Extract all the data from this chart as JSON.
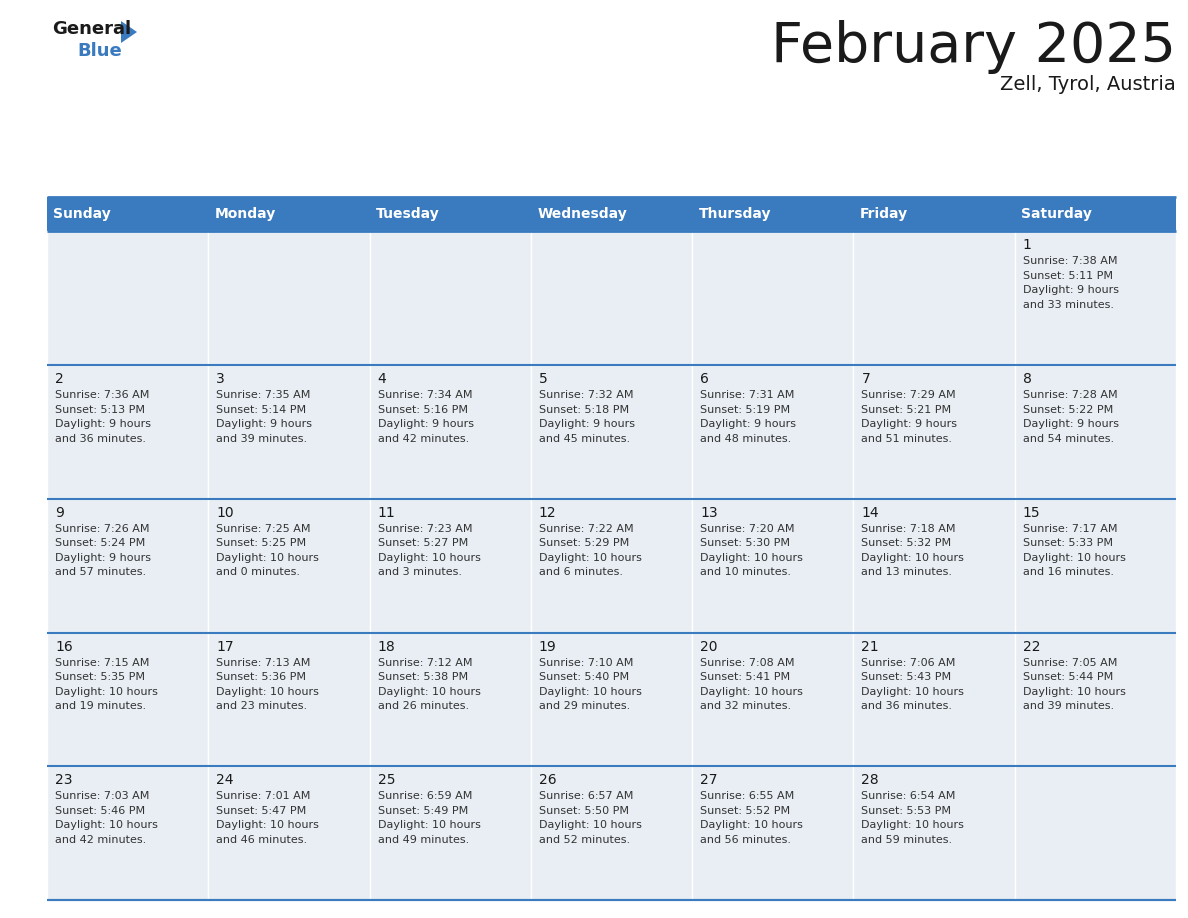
{
  "title": "February 2025",
  "subtitle": "Zell, Tyrol, Austria",
  "header_color": "#3a7abf",
  "header_text_color": "#ffffff",
  "cell_bg_color": "#e8eef4",
  "border_color": "#3a7abf",
  "row_line_color": "#3a7abf",
  "title_color": "#1a1a1a",
  "subtitle_color": "#1a1a1a",
  "day_number_color": "#1a1a1a",
  "cell_text_color": "#333333",
  "days_of_week": [
    "Sunday",
    "Monday",
    "Tuesday",
    "Wednesday",
    "Thursday",
    "Friday",
    "Saturday"
  ],
  "calendar_data": [
    [
      null,
      null,
      null,
      null,
      null,
      null,
      {
        "day": 1,
        "sunrise": "7:38 AM",
        "sunset": "5:11 PM",
        "daylight": "9 hours\nand 33 minutes."
      }
    ],
    [
      {
        "day": 2,
        "sunrise": "7:36 AM",
        "sunset": "5:13 PM",
        "daylight": "9 hours\nand 36 minutes."
      },
      {
        "day": 3,
        "sunrise": "7:35 AM",
        "sunset": "5:14 PM",
        "daylight": "9 hours\nand 39 minutes."
      },
      {
        "day": 4,
        "sunrise": "7:34 AM",
        "sunset": "5:16 PM",
        "daylight": "9 hours\nand 42 minutes."
      },
      {
        "day": 5,
        "sunrise": "7:32 AM",
        "sunset": "5:18 PM",
        "daylight": "9 hours\nand 45 minutes."
      },
      {
        "day": 6,
        "sunrise": "7:31 AM",
        "sunset": "5:19 PM",
        "daylight": "9 hours\nand 48 minutes."
      },
      {
        "day": 7,
        "sunrise": "7:29 AM",
        "sunset": "5:21 PM",
        "daylight": "9 hours\nand 51 minutes."
      },
      {
        "day": 8,
        "sunrise": "7:28 AM",
        "sunset": "5:22 PM",
        "daylight": "9 hours\nand 54 minutes."
      }
    ],
    [
      {
        "day": 9,
        "sunrise": "7:26 AM",
        "sunset": "5:24 PM",
        "daylight": "9 hours\nand 57 minutes."
      },
      {
        "day": 10,
        "sunrise": "7:25 AM",
        "sunset": "5:25 PM",
        "daylight": "10 hours\nand 0 minutes."
      },
      {
        "day": 11,
        "sunrise": "7:23 AM",
        "sunset": "5:27 PM",
        "daylight": "10 hours\nand 3 minutes."
      },
      {
        "day": 12,
        "sunrise": "7:22 AM",
        "sunset": "5:29 PM",
        "daylight": "10 hours\nand 6 minutes."
      },
      {
        "day": 13,
        "sunrise": "7:20 AM",
        "sunset": "5:30 PM",
        "daylight": "10 hours\nand 10 minutes."
      },
      {
        "day": 14,
        "sunrise": "7:18 AM",
        "sunset": "5:32 PM",
        "daylight": "10 hours\nand 13 minutes."
      },
      {
        "day": 15,
        "sunrise": "7:17 AM",
        "sunset": "5:33 PM",
        "daylight": "10 hours\nand 16 minutes."
      }
    ],
    [
      {
        "day": 16,
        "sunrise": "7:15 AM",
        "sunset": "5:35 PM",
        "daylight": "10 hours\nand 19 minutes."
      },
      {
        "day": 17,
        "sunrise": "7:13 AM",
        "sunset": "5:36 PM",
        "daylight": "10 hours\nand 23 minutes."
      },
      {
        "day": 18,
        "sunrise": "7:12 AM",
        "sunset": "5:38 PM",
        "daylight": "10 hours\nand 26 minutes."
      },
      {
        "day": 19,
        "sunrise": "7:10 AM",
        "sunset": "5:40 PM",
        "daylight": "10 hours\nand 29 minutes."
      },
      {
        "day": 20,
        "sunrise": "7:08 AM",
        "sunset": "5:41 PM",
        "daylight": "10 hours\nand 32 minutes."
      },
      {
        "day": 21,
        "sunrise": "7:06 AM",
        "sunset": "5:43 PM",
        "daylight": "10 hours\nand 36 minutes."
      },
      {
        "day": 22,
        "sunrise": "7:05 AM",
        "sunset": "5:44 PM",
        "daylight": "10 hours\nand 39 minutes."
      }
    ],
    [
      {
        "day": 23,
        "sunrise": "7:03 AM",
        "sunset": "5:46 PM",
        "daylight": "10 hours\nand 42 minutes."
      },
      {
        "day": 24,
        "sunrise": "7:01 AM",
        "sunset": "5:47 PM",
        "daylight": "10 hours\nand 46 minutes."
      },
      {
        "day": 25,
        "sunrise": "6:59 AM",
        "sunset": "5:49 PM",
        "daylight": "10 hours\nand 49 minutes."
      },
      {
        "day": 26,
        "sunrise": "6:57 AM",
        "sunset": "5:50 PM",
        "daylight": "10 hours\nand 52 minutes."
      },
      {
        "day": 27,
        "sunrise": "6:55 AM",
        "sunset": "5:52 PM",
        "daylight": "10 hours\nand 56 minutes."
      },
      {
        "day": 28,
        "sunrise": "6:54 AM",
        "sunset": "5:53 PM",
        "daylight": "10 hours\nand 59 minutes."
      },
      null
    ]
  ],
  "logo_general_color": "#1a1a1a",
  "logo_blue_color": "#3a7abf",
  "logo_triangle_color": "#3a7abf"
}
